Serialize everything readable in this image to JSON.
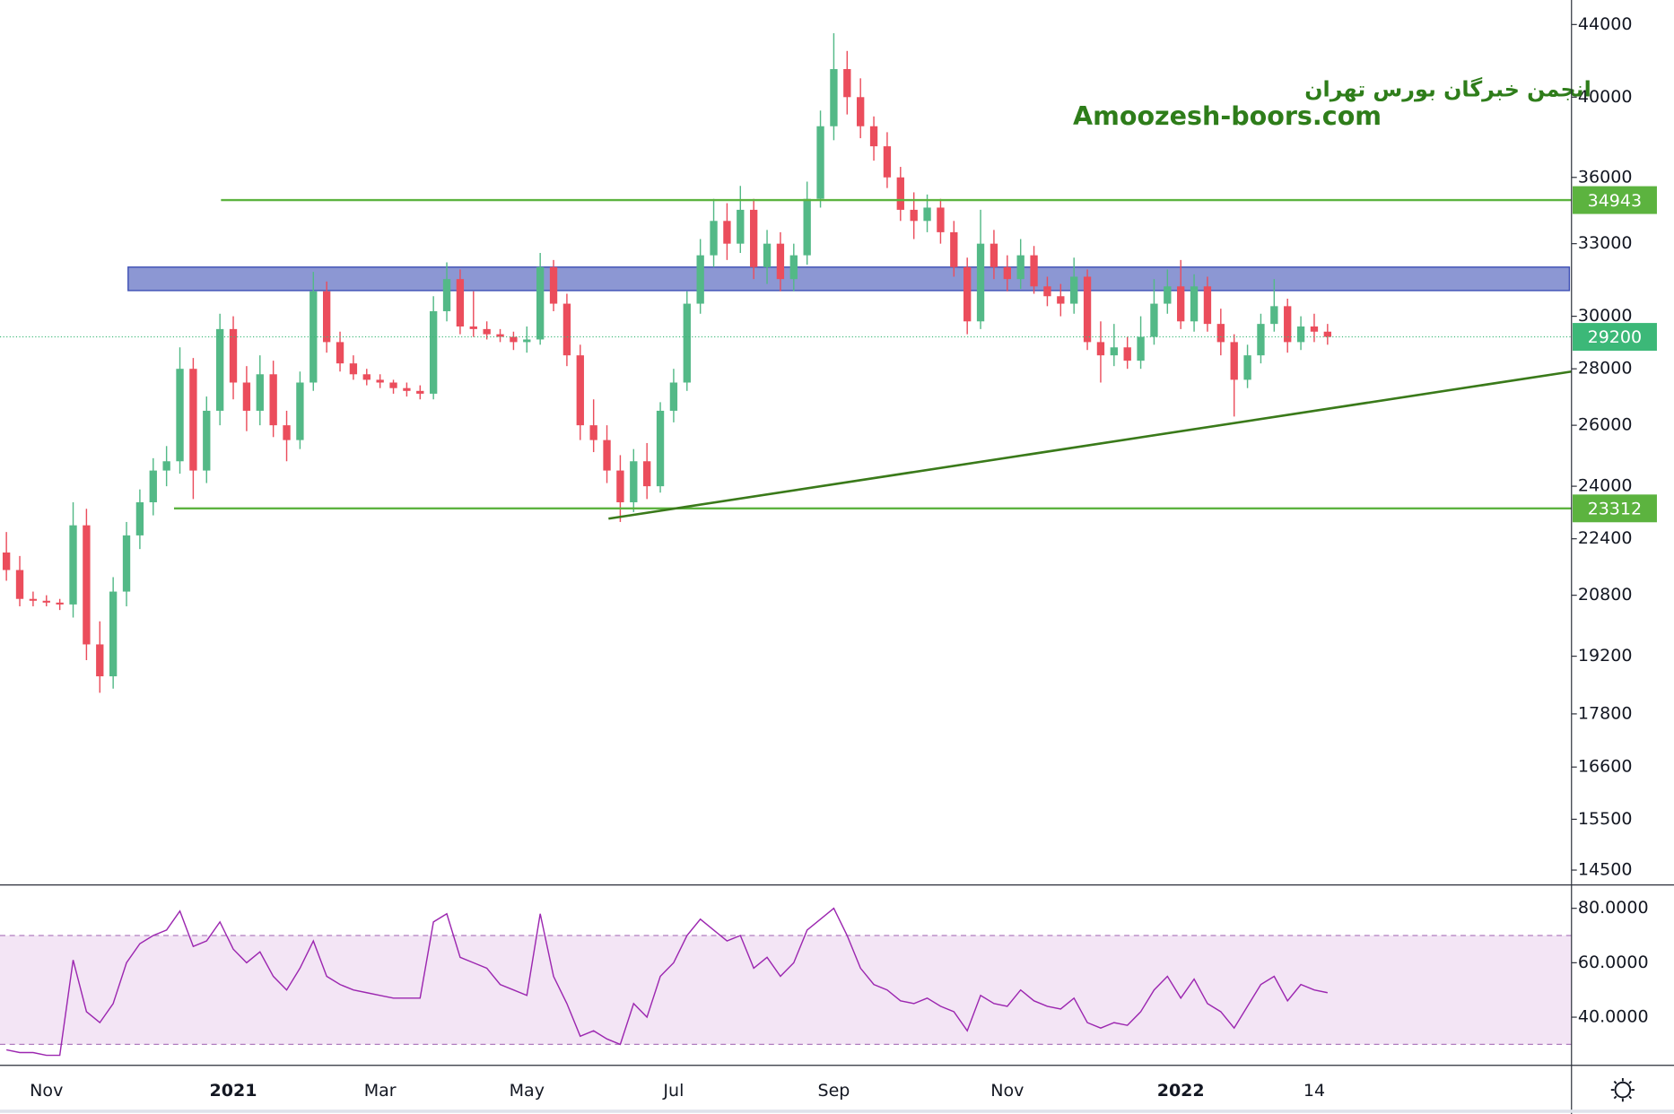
{
  "chart_data": [
    {
      "type": "candlestick",
      "categories": [
        null,
        null,
        null,
        "Nov",
        null,
        null,
        null,
        null,
        null,
        null,
        null,
        null,
        null,
        null,
        null,
        null,
        null,
        "2021",
        null,
        null,
        null,
        null,
        null,
        null,
        null,
        null,
        null,
        null,
        "Mar",
        null,
        null,
        null,
        null,
        null,
        null,
        null,
        null,
        null,
        null,
        "May",
        null,
        null,
        null,
        null,
        null,
        null,
        null,
        null,
        null,
        null,
        "Jul",
        null,
        null,
        null,
        null,
        null,
        null,
        null,
        null,
        null,
        null,
        null,
        "Sep",
        null,
        null,
        null,
        null,
        null,
        null,
        null,
        null,
        null,
        null,
        null,
        null,
        "Nov",
        null,
        null,
        null,
        null,
        null,
        null,
        null,
        null,
        null,
        null,
        null,
        null,
        "2022",
        null,
        null,
        null,
        null,
        null,
        null,
        null,
        null,
        null,
        "14",
        null
      ],
      "open": [
        22000,
        21500,
        20700,
        20650,
        20600,
        20550,
        22800,
        19500,
        18700,
        20900,
        22500,
        23500,
        24500,
        24800,
        28000,
        24500,
        26500,
        29500,
        27500,
        26500,
        27800,
        26000,
        25500,
        27500,
        31000,
        29000,
        28200,
        27800,
        27600,
        27500,
        27300,
        27200,
        27100,
        30200,
        31500,
        29600,
        29500,
        29300,
        29200,
        29000,
        29100,
        32000,
        30500,
        28500,
        26000,
        25500,
        24500,
        23500,
        24800,
        24000,
        26500,
        27500,
        30500,
        32500,
        34000,
        33000,
        34500,
        32000,
        33000,
        31500,
        32500,
        35000,
        38500,
        41500,
        40000,
        38500,
        37500,
        36000,
        34500,
        34000,
        34600,
        33500,
        32000,
        29800,
        33000,
        32000,
        31500,
        32500,
        31200,
        30800,
        30500,
        31600,
        29000,
        28500,
        28800,
        28300,
        29200,
        30500,
        31200,
        29800,
        31200,
        29700,
        29000,
        27600,
        28500,
        29700,
        30400,
        29000,
        29600,
        29400
      ],
      "high": [
        22600,
        21900,
        20900,
        20800,
        20700,
        23500,
        23300,
        20100,
        21300,
        22900,
        23900,
        24900,
        25300,
        28800,
        28400,
        27000,
        30100,
        30000,
        28100,
        28500,
        28300,
        26500,
        27900,
        31800,
        31400,
        29400,
        28500,
        28000,
        27800,
        27600,
        27500,
        27400,
        30800,
        32200,
        31900,
        31000,
        29800,
        29500,
        29400,
        29600,
        32600,
        32300,
        30900,
        28900,
        26900,
        26000,
        25000,
        25200,
        25400,
        26800,
        28000,
        31000,
        33200,
        35000,
        34800,
        35600,
        35000,
        33600,
        33500,
        33000,
        35800,
        39300,
        43500,
        42500,
        41000,
        39000,
        38200,
        36500,
        35300,
        35200,
        35000,
        34000,
        32400,
        34500,
        33600,
        32500,
        33200,
        32900,
        31600,
        31300,
        32400,
        31900,
        29800,
        29700,
        29200,
        30000,
        31500,
        31900,
        32300,
        31700,
        31600,
        30300,
        29300,
        28900,
        30100,
        31500,
        30700,
        30000,
        30100,
        29700
      ],
      "low": [
        21200,
        20500,
        20500,
        20500,
        20400,
        20200,
        19100,
        18300,
        18400,
        20500,
        22100,
        23100,
        24000,
        24400,
        23600,
        24100,
        26000,
        26900,
        25800,
        26000,
        25600,
        24800,
        25200,
        27200,
        28600,
        27900,
        27600,
        27400,
        27300,
        27100,
        27000,
        26900,
        26900,
        29800,
        29300,
        29200,
        29100,
        29000,
        28700,
        28600,
        28900,
        30200,
        28100,
        25500,
        25100,
        24100,
        22900,
        23200,
        23600,
        23800,
        26100,
        27200,
        30100,
        32000,
        32300,
        32600,
        31500,
        31300,
        31000,
        31000,
        32100,
        34600,
        37800,
        39100,
        37900,
        36800,
        35500,
        34000,
        33200,
        33500,
        33000,
        31600,
        29300,
        29500,
        31500,
        31000,
        31100,
        30900,
        30400,
        30000,
        30100,
        28700,
        27500,
        28100,
        28000,
        28000,
        28900,
        30100,
        29500,
        29400,
        29400,
        28500,
        26300,
        27300,
        28200,
        29400,
        28600,
        28700,
        29000,
        28900
      ],
      "close": [
        21500,
        20700,
        20650,
        20600,
        20550,
        22800,
        19500,
        18700,
        20900,
        22500,
        23500,
        24500,
        24800,
        28000,
        24500,
        26500,
        29500,
        27500,
        26500,
        27800,
        26000,
        25500,
        27500,
        31000,
        29000,
        28200,
        27800,
        27600,
        27500,
        27300,
        27200,
        27100,
        30200,
        31500,
        29600,
        29500,
        29300,
        29200,
        29000,
        29100,
        32000,
        30500,
        28500,
        26000,
        25500,
        24500,
        23500,
        24800,
        24000,
        26500,
        27500,
        30500,
        32500,
        34000,
        33000,
        34500,
        32000,
        33000,
        31500,
        32500,
        35000,
        38500,
        41500,
        40000,
        38500,
        37500,
        36000,
        34500,
        34000,
        34600,
        33500,
        32000,
        29800,
        33000,
        32000,
        31500,
        32500,
        31200,
        30800,
        30500,
        31600,
        29000,
        28500,
        28800,
        28300,
        29200,
        30500,
        31200,
        29800,
        31200,
        29700,
        29000,
        27600,
        28500,
        29700,
        30400,
        29000,
        29600,
        29400,
        29200
      ],
      "up_color": "#53b987",
      "down_color": "#eb4d5c",
      "log_scale": true,
      "ylim": [
        14240,
        45440
      ],
      "yticks": [
        44000,
        40000,
        36000,
        33000,
        30000,
        28000,
        26000,
        24000,
        22400,
        20800,
        19200,
        17800,
        16600,
        15500,
        14500
      ],
      "levels": [
        {
          "value": 34943,
          "color": "#5cb33f"
        },
        {
          "value": 23312,
          "color": "#5cb33f"
        }
      ],
      "last_price_color": "#3cb878",
      "zone": {
        "low": 31030,
        "high": 32000,
        "color": "#3f51b5"
      },
      "trendline": {
        "values": [
          23000,
          27900
        ],
        "color": "#3a7a1a"
      },
      "annotations": [
        "انجمن خبرگان بورس تهران",
        "Amoozesh-boors.com"
      ]
    },
    {
      "type": "line",
      "series": [
        {
          "color": "#9c27b0",
          "values": [
            28,
            27,
            27,
            26,
            26,
            61,
            42,
            38,
            45,
            60,
            67,
            70,
            72,
            79,
            66,
            68,
            75,
            65,
            60,
            64,
            55,
            50,
            58,
            68,
            55,
            52,
            50,
            49,
            48,
            47,
            47,
            47,
            75,
            78,
            62,
            60,
            58,
            52,
            50,
            48,
            78,
            55,
            45,
            33,
            35,
            32,
            30,
            45,
            40,
            55,
            60,
            70,
            76,
            72,
            68,
            70,
            58,
            62,
            55,
            60,
            72,
            76,
            80,
            70,
            58,
            52,
            50,
            46,
            45,
            47,
            44,
            42,
            35,
            48,
            45,
            44,
            50,
            46,
            44,
            43,
            47,
            38,
            36,
            38,
            37,
            42,
            50,
            55,
            47,
            54,
            45,
            42,
            36,
            44,
            52,
            55,
            46,
            52,
            50,
            49
          ]
        }
      ],
      "ylim": [
        22.7,
        88.2
      ],
      "yticks": [
        {
          "value": 80,
          "label": "80.0000"
        },
        {
          "value": 60,
          "label": "60.0000"
        },
        {
          "value": 40,
          "label": "40.0000"
        }
      ],
      "band": [
        30,
        70
      ]
    }
  ]
}
